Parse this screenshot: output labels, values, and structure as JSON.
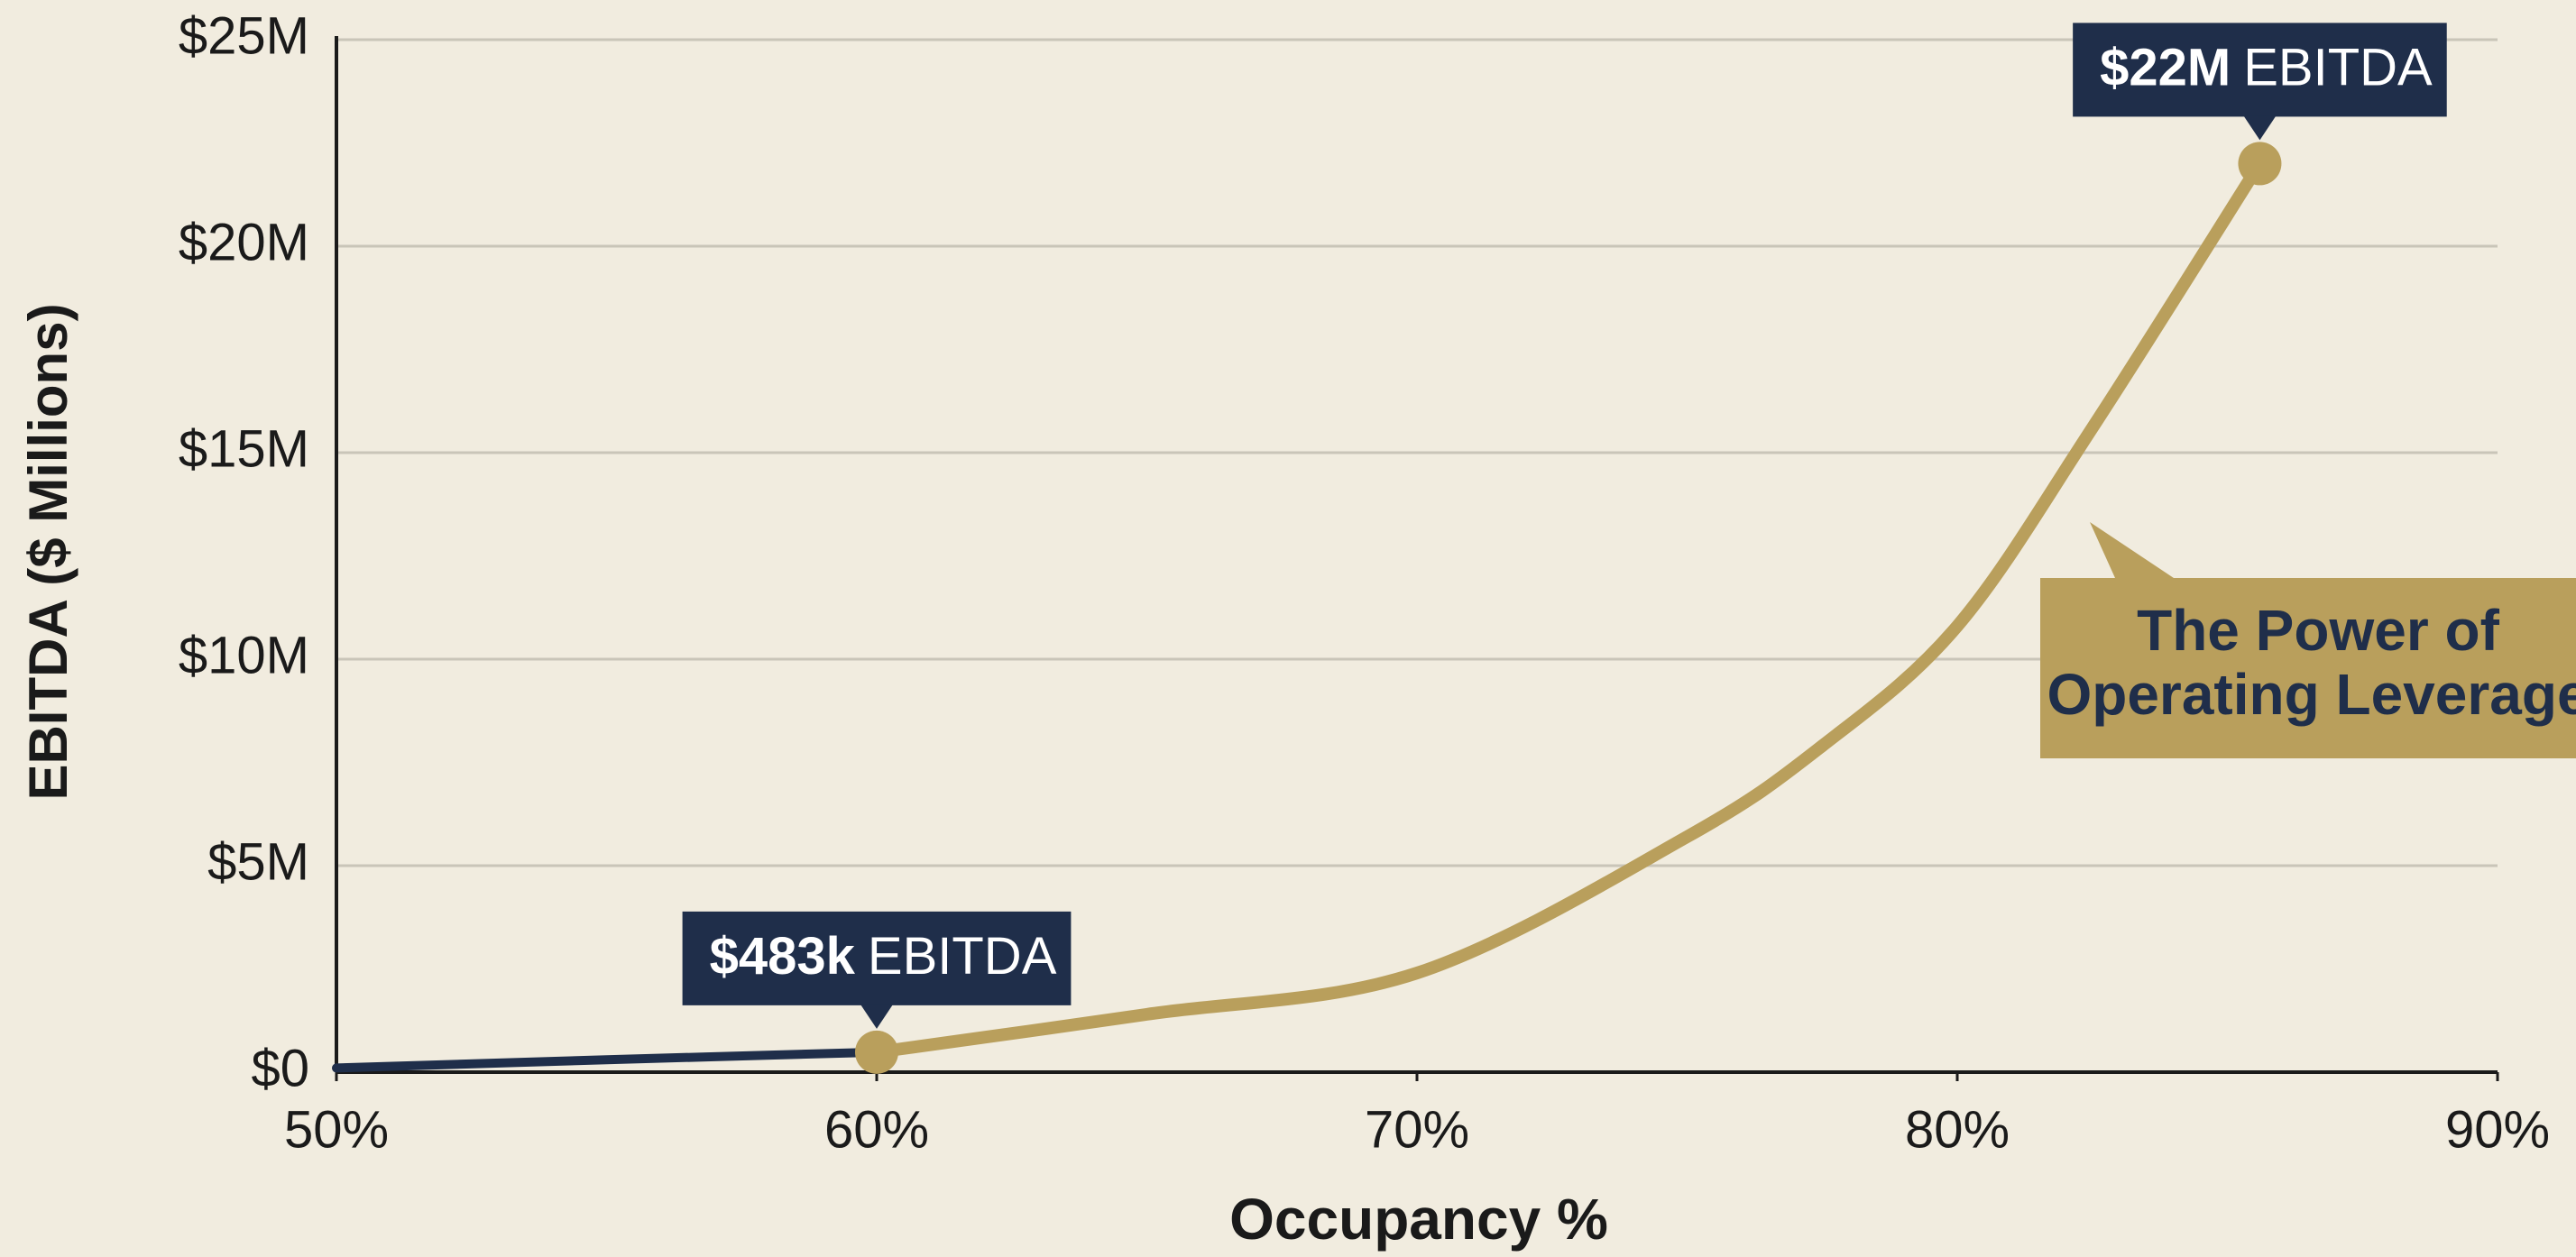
{
  "chart_data": {
    "type": "line",
    "x_label": "Occupancy %",
    "y_label": "EBITDA ($ Millions)",
    "xlim": [
      50,
      90
    ],
    "ylim": [
      0,
      25
    ],
    "xticks": [
      {
        "value": 50,
        "label": "50%"
      },
      {
        "value": 60,
        "label": "60%"
      },
      {
        "value": 70,
        "label": "70%"
      },
      {
        "value": 80,
        "label": "80%"
      },
      {
        "value": 90,
        "label": "90%"
      }
    ],
    "yticks": [
      {
        "value": 0,
        "label": "$0"
      },
      {
        "value": 5,
        "label": "$5M"
      },
      {
        "value": 10,
        "label": "$10M"
      },
      {
        "value": 15,
        "label": "$15M"
      },
      {
        "value": 20,
        "label": "$20M"
      },
      {
        "value": 25,
        "label": "$25M"
      }
    ],
    "grid": true,
    "series": [
      {
        "color": "#1f2e4a",
        "x": [
          50,
          55,
          60
        ],
        "values": [
          0.1,
          0.3,
          0.483
        ]
      },
      {
        "color": "#b99f5c",
        "x": [
          60,
          65,
          70,
          75,
          77.5,
          80,
          82.5,
          85.6
        ],
        "values": [
          0.483,
          1.4,
          2.4,
          5.7,
          7.9,
          10.8,
          15.6,
          22
        ]
      }
    ],
    "annotations": [
      {
        "series": 1,
        "point": 0,
        "label": "$483k",
        "suffix": "EBITDA",
        "color": "#1f2e4a"
      },
      {
        "series": 1,
        "point": 7,
        "label": "$22M",
        "suffix": "EBITDA",
        "color": "#1f2e4a"
      }
    ],
    "callout": {
      "lines": [
        "The Power of",
        "Operating Leverage"
      ],
      "color": "#b99f5c"
    }
  }
}
